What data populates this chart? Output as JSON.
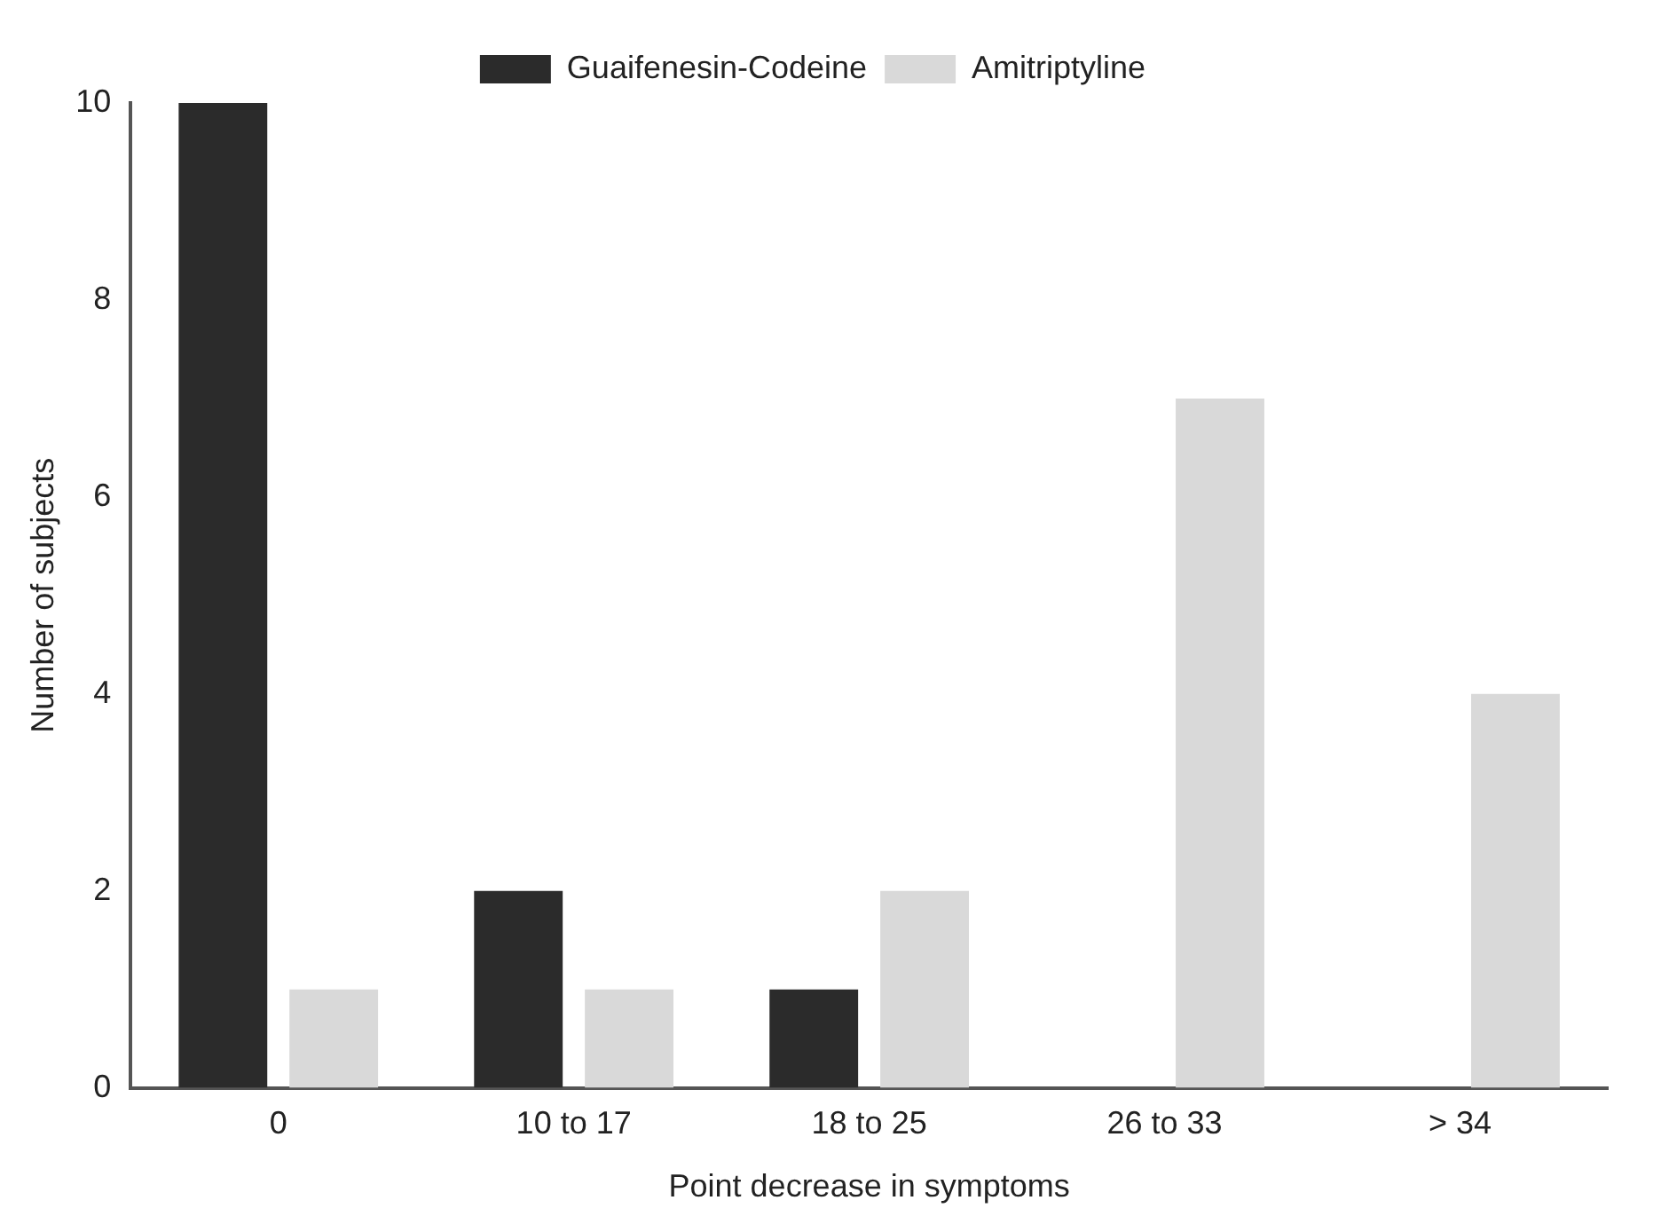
{
  "chart_data": {
    "type": "bar",
    "xlabel": "Point decrease in symptoms",
    "ylabel": "Number of subjects",
    "categories": [
      "0",
      "10 to 17",
      "18 to 25",
      "26 to 33",
      "> 34"
    ],
    "series": [
      {
        "name": "Guaifenesin-Codeine",
        "color": "#2b2b2b",
        "values": [
          10,
          2,
          1,
          0,
          0
        ]
      },
      {
        "name": "Amitriptyline",
        "color": "#d9d9d9",
        "values": [
          1,
          1,
          2,
          7,
          4
        ]
      }
    ],
    "ylim": [
      0,
      10
    ],
    "yticks": [
      0,
      2,
      4,
      6,
      8,
      10
    ],
    "grid": false,
    "legend": "top"
  }
}
